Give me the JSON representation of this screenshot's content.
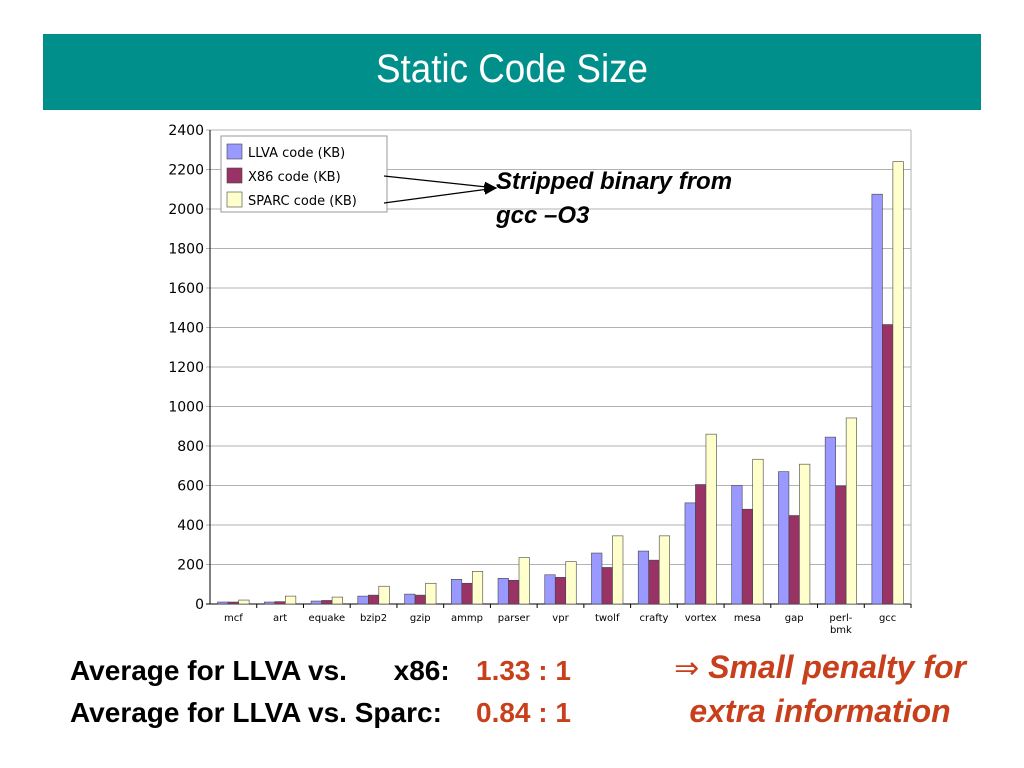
{
  "slide": {
    "title": "Static Code Size",
    "annotation": [
      "Stripped binary from",
      "gcc –O3"
    ],
    "averages": [
      {
        "label": "Average for LLVA vs.      x86:",
        "value": "1.33 : 1"
      },
      {
        "label": "Average for LLVA vs. Sparc:",
        "value": "0.84 : 1"
      }
    ],
    "conclusion": {
      "arrow": "⇒",
      "line1": "Small penalty for",
      "line2": "extra information"
    }
  },
  "chart_data": {
    "type": "bar",
    "categories": [
      "mcf",
      "art",
      "equake",
      "bzip2",
      "gzip",
      "ammp",
      "parser",
      "vpr",
      "twolf",
      "crafty",
      "vortex",
      "mesa",
      "gap",
      "perl-\nbmk",
      "gcc"
    ],
    "series": [
      {
        "name": "LLVA code (KB)",
        "color": "#9999ff",
        "values": [
          10,
          10,
          15,
          40,
          50,
          125,
          130,
          148,
          258,
          268,
          512,
          600,
          670,
          845,
          2075
        ]
      },
      {
        "name": "X86 code (KB)",
        "color": "#993366",
        "values": [
          10,
          12,
          18,
          45,
          45,
          105,
          120,
          135,
          185,
          222,
          605,
          480,
          448,
          598,
          1415
        ]
      },
      {
        "name": "SPARC code (KB)",
        "color": "#ffffcc",
        "values": [
          20,
          40,
          35,
          90,
          105,
          165,
          235,
          215,
          345,
          345,
          860,
          733,
          708,
          942,
          2240
        ]
      }
    ],
    "yticks": [
      "0",
      "200",
      "400",
      "600",
      "800",
      "1000",
      "1200",
      "1400",
      "1600",
      "1800",
      "2000",
      "2200",
      "2400"
    ],
    "ylim": [
      0,
      2400
    ],
    "grid": true,
    "legend_position": "top-left"
  }
}
